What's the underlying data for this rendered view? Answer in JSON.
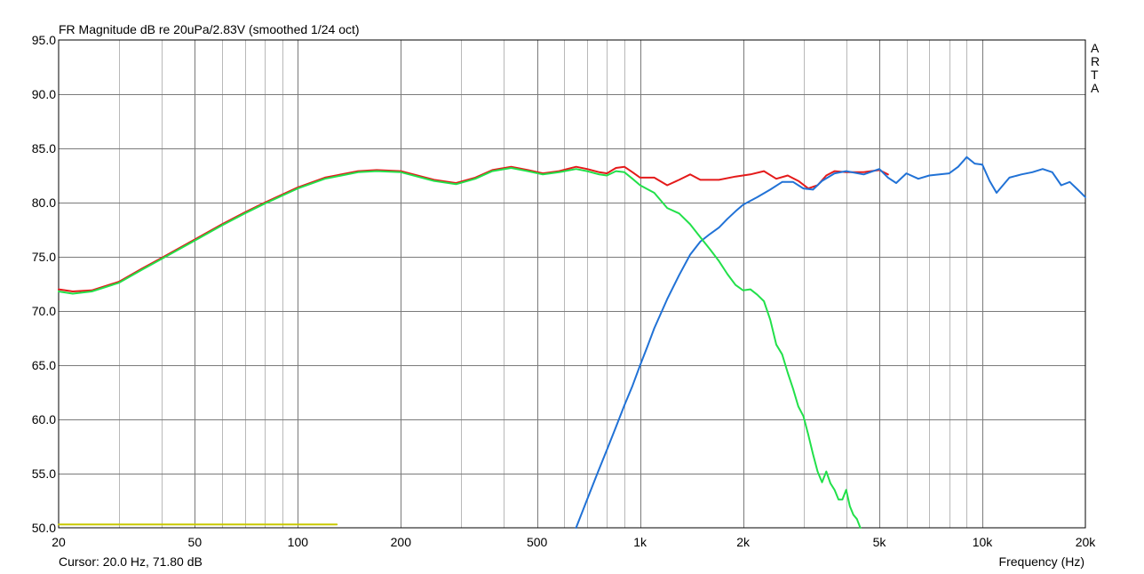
{
  "header": {
    "title": "FR Magnitude dB re 20uPa/2.83V (smoothed 1/24 oct)"
  },
  "watermark": {
    "letters": [
      "A",
      "R",
      "T",
      "A"
    ]
  },
  "status": {
    "cursor": "Cursor: 20.0 Hz, 71.80 dB"
  },
  "chart_data": {
    "type": "line",
    "title": "FR Magnitude dB re 20uPa/2.83V (smoothed 1/24 oct)",
    "xlabel": "Frequency (Hz)",
    "ylabel": "",
    "xscale": "log",
    "xlim": [
      20,
      20000
    ],
    "ylim": [
      50,
      95
    ],
    "grid": true,
    "x_ticks": [
      20,
      50,
      100,
      200,
      500,
      1000,
      2000,
      5000,
      10000,
      20000
    ],
    "x_tick_labels": [
      "20",
      "50",
      "100",
      "200",
      "500",
      "1k",
      "2k",
      "5k",
      "10k",
      "20k"
    ],
    "y_ticks": [
      50,
      55,
      60,
      65,
      70,
      75,
      80,
      85,
      90,
      95
    ],
    "y_tick_labels": [
      "50.0",
      "55.0",
      "60.0",
      "65.0",
      "70.0",
      "75.0",
      "80.0",
      "85.0",
      "90.0",
      "95.0"
    ],
    "series": [
      {
        "color": "#e41a1a",
        "x": [
          20,
          22,
          25,
          30,
          35,
          40,
          50,
          60,
          70,
          80,
          100,
          120,
          150,
          170,
          200,
          250,
          290,
          330,
          370,
          420,
          470,
          520,
          580,
          650,
          700,
          760,
          800,
          850,
          900,
          950,
          1000,
          1100,
          1200,
          1300,
          1400,
          1500,
          1700,
          1900,
          2100,
          2300,
          2500,
          2700,
          2900,
          3100,
          3300,
          3500,
          3700,
          4000,
          4500,
          5000,
          5300
        ],
        "y": [
          72.0,
          71.8,
          71.9,
          72.7,
          73.9,
          74.9,
          76.6,
          78.0,
          79.1,
          80.0,
          81.4,
          82.3,
          82.9,
          83.0,
          82.9,
          82.1,
          81.8,
          82.3,
          83.0,
          83.3,
          83.0,
          82.7,
          82.9,
          83.3,
          83.1,
          82.8,
          82.7,
          83.2,
          83.3,
          82.8,
          82.3,
          82.3,
          81.6,
          82.1,
          82.6,
          82.1,
          82.1,
          82.4,
          82.6,
          82.9,
          82.2,
          82.5,
          82.0,
          81.3,
          81.6,
          82.5,
          82.9,
          82.8,
          82.8,
          83.0,
          82.6
        ]
      },
      {
        "color": "#2172d6",
        "x": [
          650,
          700,
          750,
          800,
          850,
          900,
          950,
          1000,
          1050,
          1100,
          1200,
          1300,
          1400,
          1500,
          1600,
          1700,
          1800,
          1900,
          2000,
          2200,
          2400,
          2600,
          2800,
          3000,
          3200,
          3400,
          3700,
          4000,
          4500,
          5000,
          5300,
          5600,
          6000,
          6500,
          7000,
          7500,
          8000,
          8500,
          9000,
          9500,
          10000,
          10500,
          11000,
          12000,
          13000,
          14000,
          15000,
          16000,
          17000,
          18000,
          19000,
          20000
        ],
        "y": [
          50.0,
          52.6,
          55.0,
          57.2,
          59.3,
          61.3,
          63.1,
          65.0,
          66.7,
          68.4,
          71.1,
          73.3,
          75.2,
          76.4,
          77.1,
          77.7,
          78.5,
          79.2,
          79.8,
          80.5,
          81.2,
          81.9,
          81.9,
          81.3,
          81.2,
          82.0,
          82.7,
          82.9,
          82.6,
          83.1,
          82.3,
          81.8,
          82.7,
          82.2,
          82.5,
          82.6,
          82.7,
          83.3,
          84.2,
          83.6,
          83.5,
          82.0,
          80.9,
          82.3,
          82.6,
          82.8,
          83.1,
          82.8,
          81.6,
          81.9,
          81.2,
          80.5
        ]
      },
      {
        "color": "#22e04a",
        "x": [
          20,
          22,
          25,
          30,
          35,
          40,
          50,
          60,
          70,
          80,
          100,
          120,
          150,
          170,
          200,
          250,
          290,
          330,
          370,
          420,
          470,
          520,
          580,
          650,
          700,
          760,
          800,
          850,
          900,
          950,
          1000,
          1100,
          1200,
          1300,
          1400,
          1500,
          1600,
          1700,
          1800,
          1900,
          2000,
          2100,
          2200,
          2300,
          2400,
          2500,
          2600,
          2700,
          2800,
          2900,
          3000,
          3100,
          3200,
          3300,
          3400,
          3500,
          3600,
          3700,
          3800,
          3900,
          4000,
          4100,
          4200,
          4300,
          4400
        ],
        "y": [
          71.8,
          71.6,
          71.8,
          72.6,
          73.8,
          74.8,
          76.5,
          77.9,
          79.0,
          79.9,
          81.3,
          82.2,
          82.8,
          82.9,
          82.8,
          82.0,
          81.7,
          82.2,
          82.9,
          83.2,
          82.9,
          82.6,
          82.8,
          83.1,
          82.9,
          82.6,
          82.5,
          82.9,
          82.8,
          82.2,
          81.6,
          80.9,
          79.5,
          79.0,
          78.0,
          76.8,
          75.7,
          74.6,
          73.4,
          72.4,
          71.9,
          72.0,
          71.5,
          70.9,
          69.2,
          66.9,
          66.0,
          64.3,
          62.8,
          61.2,
          60.3,
          58.6,
          56.8,
          55.2,
          54.2,
          55.2,
          54.1,
          53.5,
          52.6,
          52.6,
          53.5,
          52.0,
          51.2,
          50.8,
          50.0
        ]
      },
      {
        "color": "#c8c800",
        "x": [
          20,
          130
        ],
        "y": [
          50.3,
          50.3
        ]
      }
    ]
  }
}
